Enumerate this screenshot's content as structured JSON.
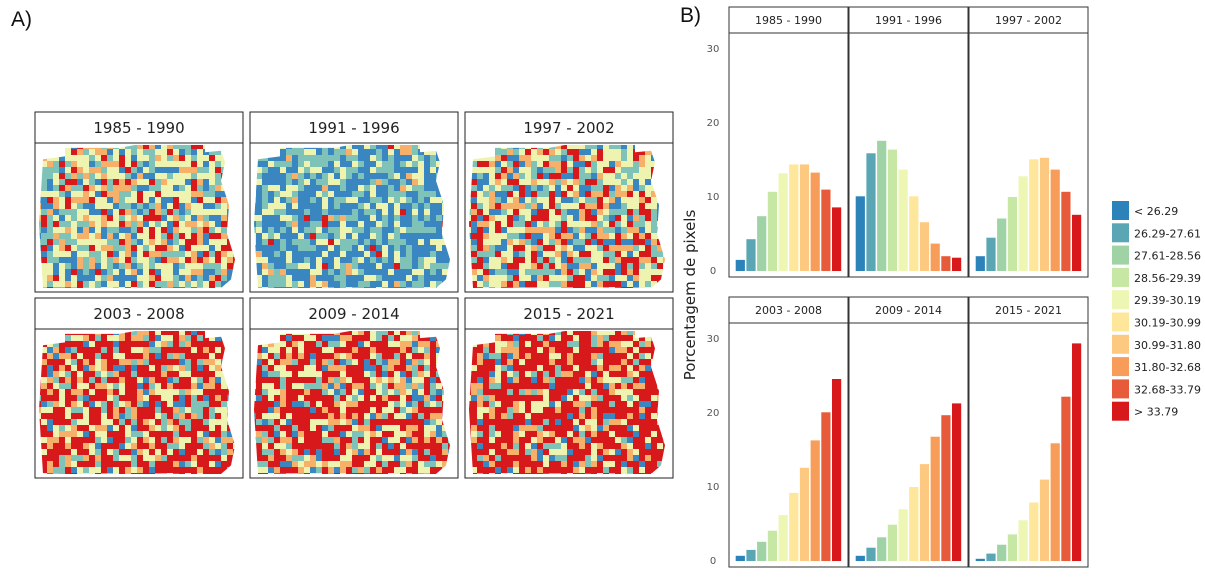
{
  "panel_a_label": "A)",
  "panel_b_label": "B)",
  "periods": [
    "1985 - 1990",
    "1991 - 1996",
    "1997 - 2002",
    "2003 - 2008",
    "2009 - 2014",
    "2015 - 2021"
  ],
  "map_palettes": [
    {
      "blue": 0.18,
      "cyan": 0.22,
      "light": 0.3,
      "orange": 0.15,
      "red": 0.15
    },
    {
      "blue": 0.45,
      "cyan": 0.3,
      "light": 0.2,
      "orange": 0.03,
      "red": 0.02
    },
    {
      "blue": 0.15,
      "cyan": 0.22,
      "light": 0.3,
      "orange": 0.15,
      "red": 0.18
    },
    {
      "blue": 0.08,
      "cyan": 0.12,
      "light": 0.2,
      "orange": 0.15,
      "red": 0.45
    },
    {
      "blue": 0.08,
      "cyan": 0.12,
      "light": 0.2,
      "orange": 0.15,
      "red": 0.45
    },
    {
      "blue": 0.06,
      "cyan": 0.1,
      "light": 0.16,
      "orange": 0.14,
      "red": 0.54
    }
  ],
  "chart_data": {
    "type": "bar",
    "ylabel": "Porcentagem de pixels",
    "ylim": [
      0,
      30
    ],
    "yticks": [
      0,
      10,
      20,
      30
    ],
    "categories": [
      "< 26.29",
      "26.29-27.61",
      "27.61-28.56",
      "28.56-29.39",
      "29.39-30.19",
      "30.19-30.99",
      "30.99-31.80",
      "31.80-32.68",
      "32.68-33.79",
      "> 33.79"
    ],
    "colors": [
      "#2b83ba",
      "#5aa6b5",
      "#9fd3a6",
      "#c7e7a4",
      "#eef6b4",
      "#fee79b",
      "#fdc980",
      "#f89d59",
      "#e75b3a",
      "#d7191c"
    ],
    "legend_position": "right",
    "panels": [
      {
        "period": "1985 - 1990",
        "values": [
          1.5,
          4.3,
          7.4,
          10.7,
          13.2,
          14.4,
          14.4,
          13.3,
          11.0,
          8.6
        ]
      },
      {
        "period": "1991 - 1996",
        "values": [
          10.1,
          15.9,
          17.6,
          16.4,
          13.7,
          10.1,
          6.6,
          3.7,
          2.0,
          1.8
        ]
      },
      {
        "period": "1997 - 2002",
        "values": [
          2.0,
          4.5,
          7.1,
          10.0,
          12.8,
          15.1,
          15.3,
          13.7,
          10.7,
          7.6
        ]
      },
      {
        "period": "2003 - 2008",
        "values": [
          0.7,
          1.5,
          2.6,
          4.1,
          6.2,
          9.2,
          12.6,
          16.3,
          20.1,
          24.6
        ]
      },
      {
        "period": "2009 - 2014",
        "values": [
          0.7,
          1.8,
          3.2,
          4.9,
          7.0,
          10.0,
          13.1,
          16.8,
          19.7,
          21.3
        ]
      },
      {
        "period": "2015 - 2021",
        "values": [
          0.3,
          1.0,
          2.2,
          3.6,
          5.5,
          7.9,
          11.0,
          15.9,
          22.2,
          29.4
        ]
      }
    ]
  }
}
